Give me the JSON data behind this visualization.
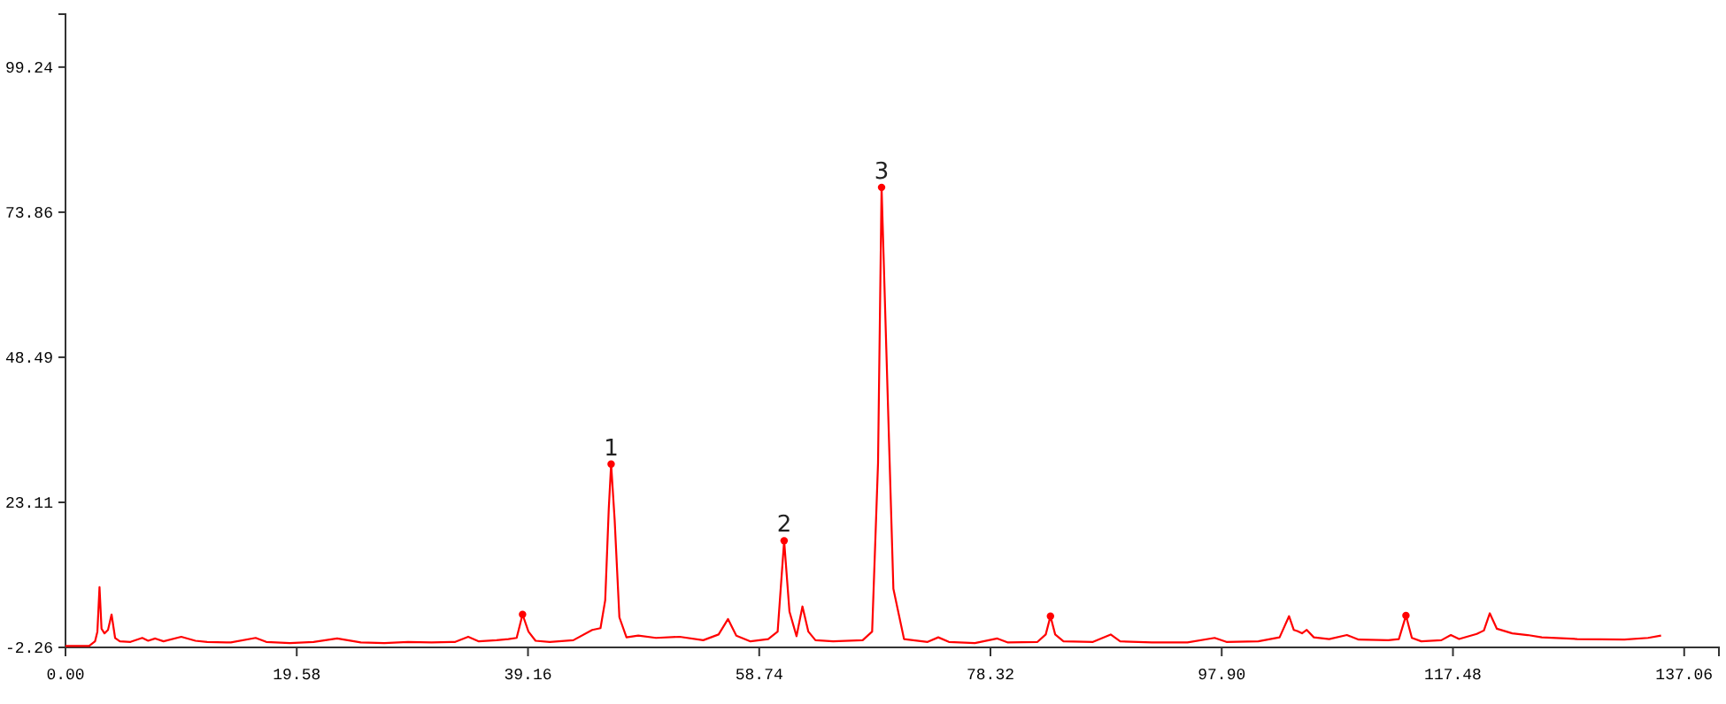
{
  "chart_data": {
    "type": "line",
    "xlim": [
      0,
      140
    ],
    "ylim": [
      -2.26,
      108.5
    ],
    "xticks": [
      {
        "value": 0,
        "label": "0.00"
      },
      19.58,
      39.16,
      58.74,
      78.32,
      {
        "value": 97.9,
        "label": "97.90"
      },
      117.48,
      137.06
    ],
    "yticks": [
      -2.26,
      23.11,
      48.49,
      73.86,
      99.24
    ],
    "grid": false,
    "series": [
      {
        "color": "#ff0000",
        "marker": "none",
        "line_style": "solid",
        "x": [
          0,
          2.0,
          2.5,
          2.7,
          2.88,
          3.05,
          3.3,
          3.6,
          3.9,
          4.2,
          4.6,
          5.5,
          6.5,
          7.0,
          7.6,
          8.3,
          9.8,
          11,
          12,
          14,
          16.1,
          17,
          19,
          21,
          23.0,
          25,
          27,
          29,
          31,
          33,
          34.1,
          35,
          36.5,
          37.5,
          38.2,
          38.7,
          39.2,
          39.8,
          41,
          43,
          44.6,
          45.3,
          45.7,
          46.0,
          46.2,
          46.5,
          46.9,
          47.5,
          48.5,
          50,
          52,
          54,
          55.3,
          56.1,
          56.8,
          58,
          59.5,
          60.3,
          60.85,
          61.3,
          61.9,
          62.4,
          62.9,
          63.5,
          65,
          67.5,
          68.3,
          68.8,
          69.1,
          69.5,
          70.1,
          71,
          73.0,
          73.9,
          74.8,
          77,
          78.9,
          79.8,
          82.3,
          83.0,
          83.4,
          83.8,
          84.5,
          87,
          88.5,
          89.3,
          92,
          95,
          97.3,
          98.3,
          101,
          102.8,
          103.6,
          104.0,
          104.3,
          104.7,
          105.1,
          105.7,
          107,
          108.5,
          109.5,
          112,
          112.9,
          113.5,
          114.0,
          114.8,
          116.5,
          117.3,
          118,
          119.5,
          120.1,
          120.6,
          121.2,
          122.5,
          123.8,
          125,
          128,
          132,
          134,
          135.1
        ],
        "values": [
          -2.0,
          -2.0,
          -1.2,
          0.5,
          8.3,
          1.0,
          0.2,
          0.8,
          3.5,
          -0.6,
          -1.2,
          -1.3,
          -0.6,
          -1.1,
          -0.7,
          -1.2,
          -0.4,
          -1.1,
          -1.3,
          -1.4,
          -0.6,
          -1.3,
          -1.5,
          -1.3,
          -0.7,
          -1.4,
          -1.5,
          -1.3,
          -1.4,
          -1.3,
          -0.4,
          -1.2,
          -1.0,
          -0.8,
          -0.6,
          3.5,
          0.5,
          -1.1,
          -1.3,
          -1.0,
          0.8,
          1.1,
          6.0,
          22.0,
          29.8,
          20.0,
          3.0,
          -0.5,
          -0.2,
          -0.6,
          -0.4,
          -1.0,
          0.0,
          2.7,
          -0.2,
          -1.2,
          -0.8,
          0.5,
          16.4,
          4.0,
          -0.3,
          4.9,
          0.5,
          -1.0,
          -1.2,
          -1.0,
          0.5,
          30.0,
          78.2,
          50.0,
          8.0,
          -0.8,
          -1.3,
          -0.5,
          -1.3,
          -1.5,
          -0.7,
          -1.4,
          -1.3,
          0.0,
          3.2,
          0.0,
          -1.2,
          -1.3,
          0.0,
          -1.2,
          -1.4,
          -1.4,
          -0.6,
          -1.3,
          -1.2,
          -0.5,
          3.2,
          0.8,
          0.6,
          0.2,
          0.8,
          -0.5,
          -0.8,
          -0.1,
          -0.9,
          -1.0,
          -0.8,
          3.3,
          -0.6,
          -1.2,
          -1.0,
          -0.1,
          -0.8,
          0.1,
          0.7,
          3.7,
          1.0,
          0.2,
          -0.1,
          -0.5,
          -0.8,
          -0.9,
          -0.6,
          -0.2
        ]
      },
      {
        "type": "scatter",
        "color": "#ff0000",
        "marker": "circle",
        "x": [
          38.7,
          46.2,
          60.85,
          69.1,
          83.4,
          113.5
        ],
        "values": [
          3.5,
          29.8,
          16.4,
          78.2,
          3.2,
          3.3
        ]
      }
    ],
    "annotations": [
      {
        "text": "1",
        "x": 46.2,
        "y": 29.8
      },
      {
        "text": "2",
        "x": 60.85,
        "y": 16.4
      },
      {
        "text": "3",
        "x": 69.1,
        "y": 78.2
      }
    ]
  }
}
